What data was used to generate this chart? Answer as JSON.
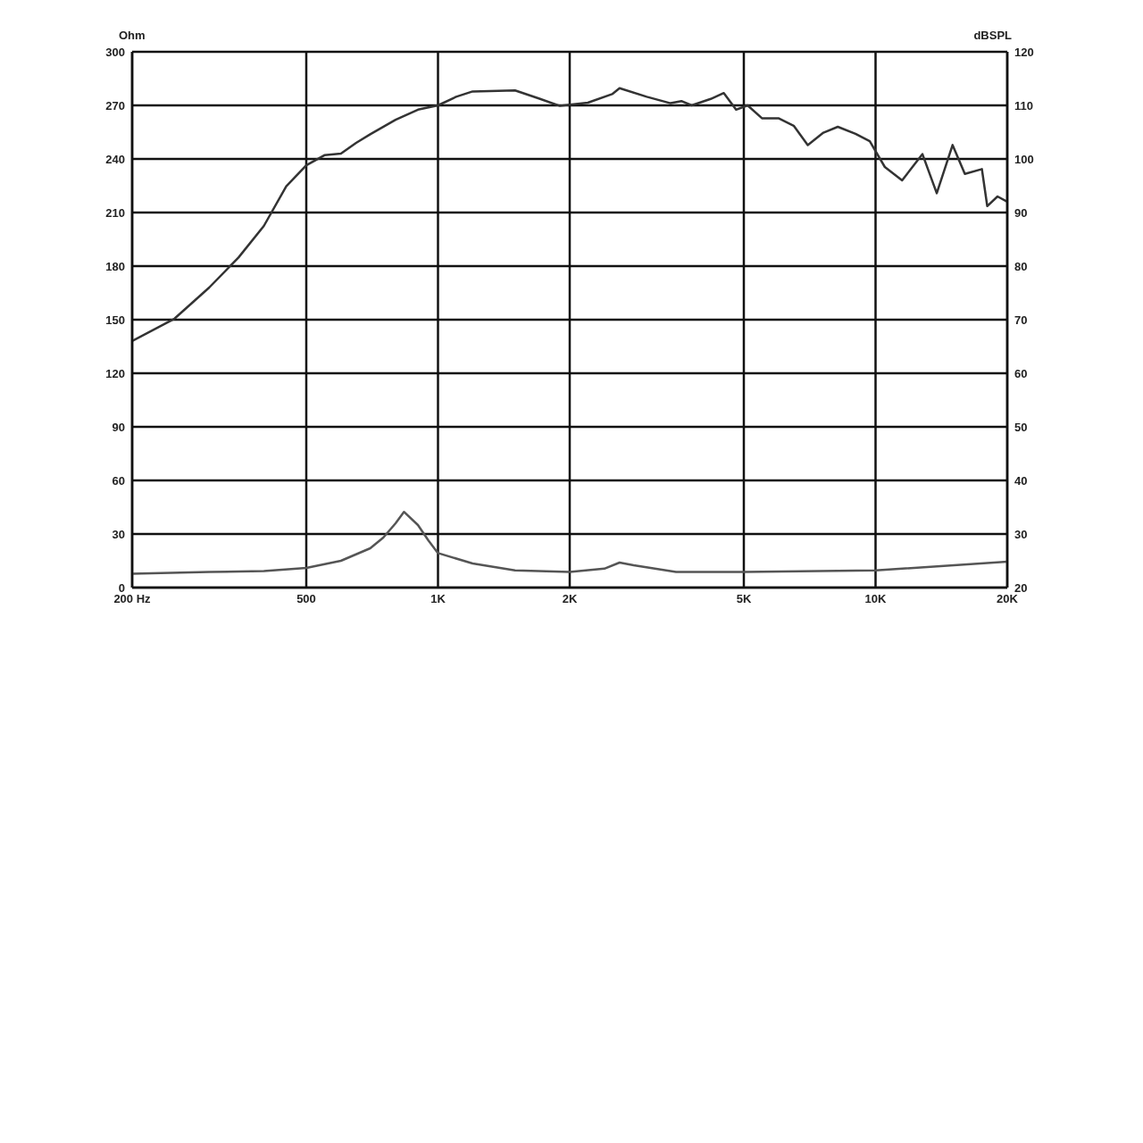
{
  "chart_data": {
    "type": "line",
    "xlabel": null,
    "ylabel": "Ohm",
    "y2label": "dBSPL",
    "log": "x",
    "grid": true,
    "legend": false,
    "marker": "none",
    "line_style": "solid",
    "xlim": [
      200,
      20000
    ],
    "xticks": [
      {
        "value": 200,
        "label": "200 Hz"
      },
      {
        "value": 500,
        "label": "500"
      },
      {
        "value": 1000,
        "label": "1K"
      },
      {
        "value": 2000,
        "label": "2K"
      },
      {
        "value": 5000,
        "label": "5K"
      },
      {
        "value": 10000,
        "label": "10K"
      },
      {
        "value": 20000,
        "label": "20K"
      }
    ],
    "ylim": [
      0,
      300
    ],
    "yticks": [
      0,
      30,
      60,
      90,
      120,
      150,
      180,
      210,
      240,
      270,
      300
    ],
    "y2lim": [
      20,
      120
    ],
    "y2ticks": [
      20,
      30,
      40,
      50,
      60,
      70,
      80,
      90,
      100,
      110,
      120
    ],
    "series": [
      {
        "color": "#333333",
        "axis": "y2",
        "x": [
          200,
          250,
          300,
          350,
          400,
          450,
          500,
          550,
          600,
          650,
          700,
          800,
          900,
          1000,
          1100,
          1200,
          1500,
          1700,
          1900,
          2200,
          2500,
          2600,
          3000,
          3400,
          3600,
          3800,
          4200,
          4500,
          4800,
          5100,
          5500,
          6000,
          6500,
          7000,
          7600,
          8200,
          9000,
          9700,
          10500,
          11500,
          12800,
          13800,
          15000,
          16000,
          17500,
          18000,
          19000,
          20000
        ],
        "values": [
          66,
          70.2,
          76,
          81.6,
          87.5,
          94.9,
          98.8,
          100.7,
          101,
          103,
          104.6,
          107.3,
          109.2,
          110,
          111.6,
          112.6,
          112.8,
          111.3,
          109.9,
          110.5,
          112.1,
          113.2,
          111.6,
          110.4,
          110.8,
          110,
          111.2,
          112.3,
          109.2,
          110,
          107.6,
          107.6,
          106.2,
          102.6,
          104.9,
          106,
          104.7,
          103.3,
          98.5,
          96,
          100.9,
          93.6,
          102.6,
          97.2,
          98.1,
          91.2,
          93,
          92
        ]
      },
      {
        "color": "#555555",
        "axis": "y",
        "x": [
          200,
          300,
          400,
          500,
          600,
          700,
          750,
          800,
          836,
          900,
          950,
          1000,
          1200,
          1500,
          2000,
          2400,
          2600,
          2800,
          3500,
          5000,
          10000,
          20000
        ],
        "values": [
          7.7,
          8.7,
          9.2,
          11,
          15,
          22,
          28,
          36,
          42.4,
          35,
          26.5,
          19.3,
          13.5,
          9.6,
          8.7,
          10.6,
          14,
          12.5,
          8.7,
          8.7,
          9.6,
          14.5
        ]
      }
    ]
  }
}
